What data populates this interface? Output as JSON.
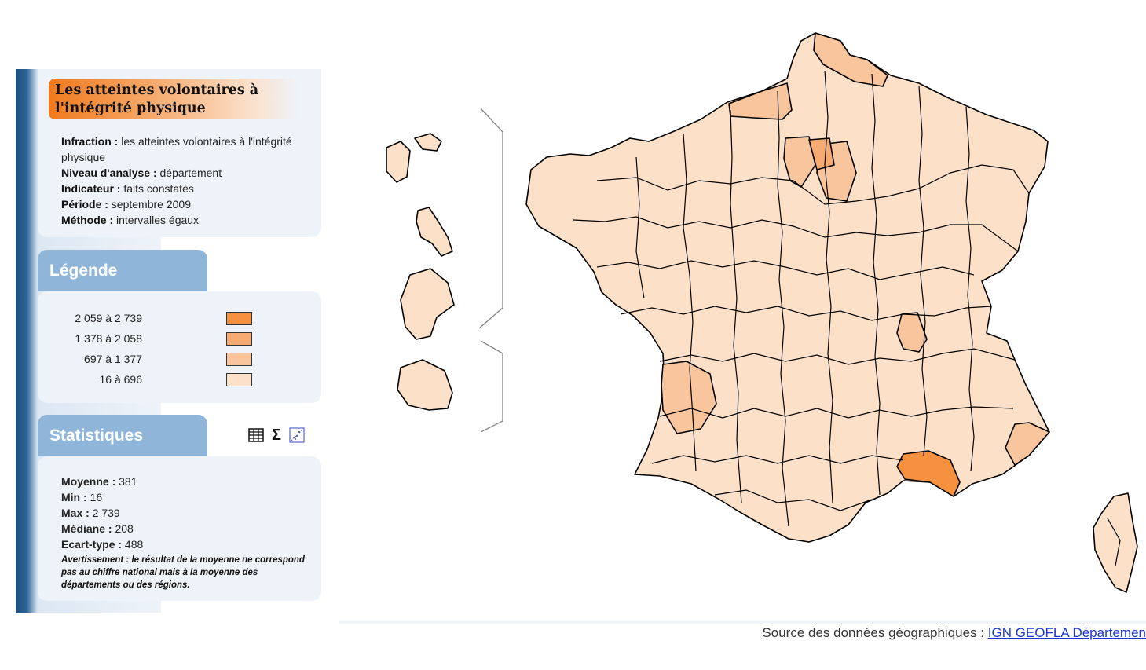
{
  "title": "Les atteintes volontaires à l'intégrité physique",
  "meta": [
    {
      "label": "Infraction :",
      "value": "les atteintes volontaires à l'intégrité physique"
    },
    {
      "label": "Niveau d'analyse :",
      "value": "département"
    },
    {
      "label": "Indicateur :",
      "value": "faits constatés"
    },
    {
      "label": "Période :",
      "value": "septembre 2009"
    },
    {
      "label": "Méthode :",
      "value": "intervalles égaux"
    }
  ],
  "legend": {
    "title": "Légende",
    "classes": [
      {
        "label": "2 059 à 2 739",
        "color": "#f5913f"
      },
      {
        "label": "1 378 à 2 058",
        "color": "#f7ab72"
      },
      {
        "label": "697 à 1 377",
        "color": "#f9c59d"
      },
      {
        "label": "16 à 696",
        "color": "#fce0c8"
      }
    ]
  },
  "stats": {
    "title": "Statistiques",
    "items": [
      {
        "label": "Moyenne :",
        "value": "381"
      },
      {
        "label": "Min :",
        "value": "16"
      },
      {
        "label": "Max :",
        "value": "2 739"
      },
      {
        "label": "Médiane :",
        "value": "208"
      },
      {
        "label": "Ecart-type :",
        "value": "488"
      }
    ],
    "warning": "Avertissement : le résultat de la moyenne ne correspond pas au chiffre national mais à la moyenne des départements ou des régions.",
    "icons": [
      "table-icon",
      "sigma-icon",
      "scatter-plot-icon"
    ]
  },
  "source": {
    "prefix": "Source des données géographiques :",
    "link": "IGN GEOFLA Départemen"
  },
  "map": {
    "colors": {
      "outline": "#000000",
      "base": "#fce0c8",
      "low": "#f9c59d",
      "mid": "#f7ab72",
      "high": "#f5913f"
    }
  }
}
